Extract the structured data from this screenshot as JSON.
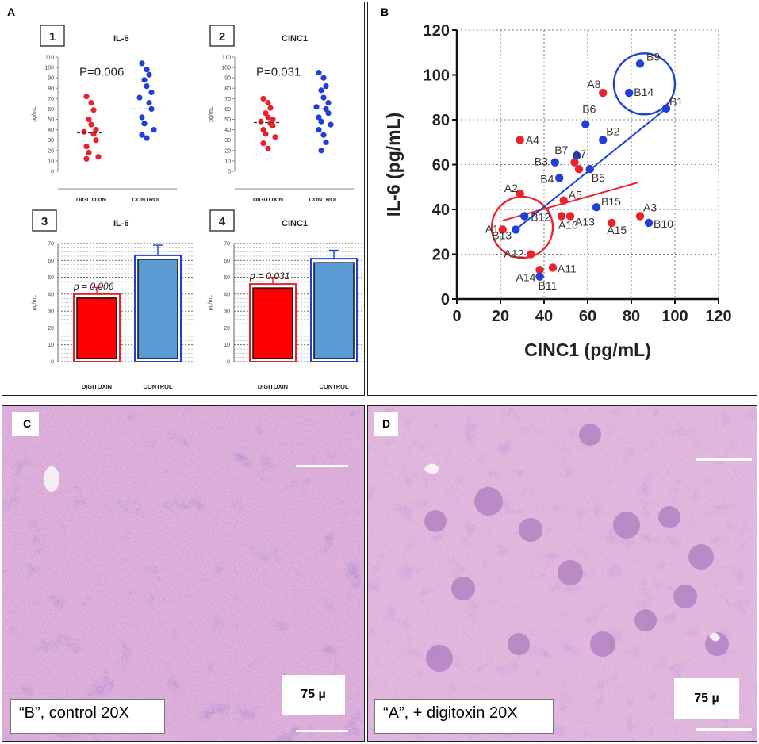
{
  "panels": {
    "a": "A",
    "b": "B",
    "c": "C",
    "d": "D"
  },
  "colors": {
    "red": "#e8242a",
    "blue": "#1f3fd8",
    "bar_red": "#ff0000",
    "bar_blue": "#5b9bd5",
    "histo_bg": "#c795c8"
  },
  "chart_data": [
    {
      "id": "1",
      "type": "scatter",
      "title": "IL-6",
      "ylabel": "pg/mL",
      "ylim": [
        0,
        110
      ],
      "yticks": [
        0,
        10,
        20,
        30,
        40,
        50,
        60,
        70,
        80,
        90,
        100,
        110
      ],
      "categories": [
        "DIGITOXIN",
        "CONTROL"
      ],
      "pvalue": "P=0.006",
      "series": [
        {
          "name": "DIGITOXIN",
          "values": [
            72,
            66,
            59,
            50,
            45,
            40,
            38,
            36,
            30,
            24,
            18,
            14,
            12
          ],
          "mean": 37
        },
        {
          "name": "CONTROL",
          "values": [
            104,
            98,
            93,
            88,
            82,
            76,
            71,
            66,
            60,
            52,
            46,
            40,
            35,
            32
          ],
          "mean": 60
        }
      ]
    },
    {
      "id": "2",
      "type": "scatter",
      "title": "CINC1",
      "ylabel": "pg/mL",
      "ylim": [
        0,
        110
      ],
      "yticks": [
        0,
        10,
        20,
        30,
        40,
        50,
        60,
        70,
        80,
        90,
        100,
        110
      ],
      "categories": [
        "DIGITOXIN",
        "CONTROL"
      ],
      "pvalue": "P=0.031",
      "series": [
        {
          "name": "DIGITOXIN",
          "values": [
            70,
            66,
            61,
            56,
            52,
            50,
            48,
            46,
            44,
            40,
            36,
            33,
            27,
            22
          ],
          "mean": 47
        },
        {
          "name": "CONTROL",
          "values": [
            95,
            90,
            82,
            78,
            71,
            66,
            62,
            60,
            56,
            52,
            48,
            45,
            40,
            35,
            28,
            20
          ],
          "mean": 60
        }
      ]
    },
    {
      "id": "3",
      "type": "bar",
      "title": "IL-6",
      "ylabel": "pg/mL",
      "ylim": [
        0,
        70
      ],
      "yticks": [
        0,
        10,
        20,
        30,
        40,
        50,
        60,
        70
      ],
      "categories": [
        "DIGITOXIN",
        "CONTROL"
      ],
      "values": [
        40,
        63
      ],
      "errors": [
        4,
        6
      ],
      "pvalue": "p = 0.006"
    },
    {
      "id": "4",
      "type": "bar",
      "title": "CINC1",
      "ylabel": "pg/mL",
      "ylim": [
        0,
        70
      ],
      "yticks": [
        0,
        10,
        20,
        30,
        40,
        50,
        60,
        70
      ],
      "categories": [
        "DIGITOXIN",
        "CONTROL"
      ],
      "values": [
        46,
        61
      ],
      "errors": [
        4,
        5
      ],
      "pvalue": "p = 0.031"
    },
    {
      "id": "B",
      "type": "scatter",
      "xlabel": "CINC1 (pg/mL)",
      "ylabel": "IL-6 (pg/mL)",
      "xlim": [
        0,
        120
      ],
      "ylim": [
        0,
        120
      ],
      "xticks": [
        0,
        20,
        40,
        60,
        80,
        100,
        120
      ],
      "yticks": [
        0,
        20,
        40,
        60,
        80,
        100,
        120
      ],
      "series": [
        {
          "name": "A",
          "points": [
            {
              "label": "A1",
              "x": 21,
              "y": 31
            },
            {
              "label": "A2",
              "x": 29,
              "y": 47
            },
            {
              "label": "A3",
              "x": 84,
              "y": 37
            },
            {
              "label": "A4",
              "x": 29,
              "y": 71
            },
            {
              "label": "A5",
              "x": 49,
              "y": 44
            },
            {
              "label": "A7",
              "x": 56,
              "y": 58
            },
            {
              "label": "A8",
              "x": 67,
              "y": 92
            },
            {
              "label": "A10",
              "x": 48,
              "y": 37
            },
            {
              "label": "A11",
              "x": 44,
              "y": 14
            },
            {
              "label": "A12",
              "x": 34,
              "y": 20
            },
            {
              "label": "A13",
              "x": 52,
              "y": 37
            },
            {
              "label": "A14",
              "x": 38,
              "y": 13
            },
            {
              "label": "A15",
              "x": 71,
              "y": 34
            },
            {
              "label": "A16",
              "x": 54,
              "y": 61
            }
          ]
        },
        {
          "name": "B",
          "points": [
            {
              "label": "B1",
              "x": 96,
              "y": 85
            },
            {
              "label": "B2",
              "x": 67,
              "y": 71
            },
            {
              "label": "B3",
              "x": 45,
              "y": 61
            },
            {
              "label": "B4",
              "x": 47,
              "y": 54
            },
            {
              "label": "B5",
              "x": 61,
              "y": 58
            },
            {
              "label": "B6",
              "x": 59,
              "y": 78
            },
            {
              "label": "B7",
              "x": 55,
              "y": 64
            },
            {
              "label": "B9",
              "x": 84,
              "y": 105
            },
            {
              "label": "B10",
              "x": 88,
              "y": 34
            },
            {
              "label": "B11",
              "x": 38,
              "y": 10
            },
            {
              "label": "B12",
              "x": 31,
              "y": 37
            },
            {
              "label": "B13",
              "x": 27,
              "y": 31
            },
            {
              "label": "B14",
              "x": 79,
              "y": 92
            },
            {
              "label": "B15",
              "x": 64,
              "y": 41
            }
          ]
        }
      ],
      "trendlines": [
        {
          "series": "A",
          "from": [
            21,
            35
          ],
          "to": [
            83,
            52
          ]
        },
        {
          "series": "B",
          "from": [
            27,
            31
          ],
          "to": [
            96,
            85
          ]
        }
      ],
      "highlight_circles": [
        {
          "series": "A",
          "center": [
            30,
            32
          ],
          "radius": 14
        },
        {
          "series": "B",
          "center": [
            86,
            96
          ],
          "radius": 14
        }
      ]
    }
  ],
  "photos": {
    "c": {
      "caption": "“B”, control 20X",
      "scale": "75 µ"
    },
    "d": {
      "caption": "“A”, + digitoxin 20X",
      "scale": "75 µ"
    }
  }
}
